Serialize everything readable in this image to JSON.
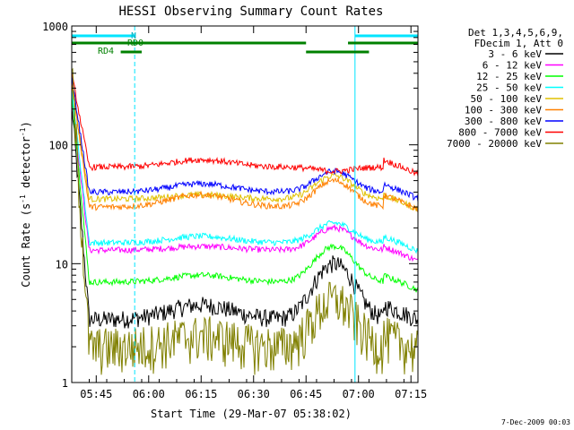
{
  "chart_data": {
    "type": "line",
    "title": "HESSI Observing Summary Count Rates",
    "xlabel": "Start Time (29-Mar-07 05:38:02)",
    "ylabel_main": "Count Rate (s",
    "ylabel_sup1": "-1",
    "ylabel_mid": " detector",
    "ylabel_sup2": "-1",
    "ylabel_end": ")",
    "yscale": "log",
    "ylim": [
      1,
      1000
    ],
    "xlim_minutes": [
      0,
      99
    ],
    "x_ticks": [
      {
        "m": 7,
        "label": "05:45"
      },
      {
        "m": 22,
        "label": "06:00"
      },
      {
        "m": 37,
        "label": "06:15"
      },
      {
        "m": 52,
        "label": "06:30"
      },
      {
        "m": 67,
        "label": "06:45"
      },
      {
        "m": 82,
        "label": "07:00"
      },
      {
        "m": 97,
        "label": "07:15"
      }
    ],
    "y_ticks": [
      {
        "v": 1,
        "label": "1"
      },
      {
        "v": 10,
        "label": "10"
      },
      {
        "v": 100,
        "label": "100"
      },
      {
        "v": 1000,
        "label": "1000"
      }
    ],
    "legend": {
      "header1": "Det 1,3,4,5,6,9,",
      "header2": "FDecim 1, Att 0",
      "placement": "right"
    },
    "series": [
      {
        "name": "3 - 6 keV",
        "color": "#000000"
      },
      {
        "name": "6 - 12 keV",
        "color": "#ff00ff"
      },
      {
        "name": "12 - 25 keV",
        "color": "#00ff00"
      },
      {
        "name": "25 - 50 keV",
        "color": "#00ffff"
      },
      {
        "name": "50 - 100 keV",
        "color": "#e0c000"
      },
      {
        "name": "100 - 300 keV",
        "color": "#ff8000"
      },
      {
        "name": "300 - 800 keV",
        "color": "#0000ff"
      },
      {
        "name": "800 - 7000 keV",
        "color": "#ff0000"
      },
      {
        "name": "7000 - 20000 keV",
        "color": "#808000"
      }
    ],
    "series_levels_flat": [
      3.4,
      13,
      7,
      15,
      35,
      30,
      40,
      65,
      2
    ],
    "series_levels_bump": [
      10,
      20,
      14,
      22,
      55,
      50,
      60,
      60,
      5
    ],
    "series_levels_orbit": [
      4.5,
      14,
      8,
      17,
      38,
      38,
      47,
      75,
      2.5
    ],
    "flag_labels": {
      "n": "N",
      "rd0": "RD0",
      "rd4": "RD4"
    },
    "dashed_lines_minutes": [
      18,
      99
    ],
    "solid_lines_minutes": [
      0,
      81
    ]
  },
  "footer_date": "7-Dec-2009 00:03"
}
